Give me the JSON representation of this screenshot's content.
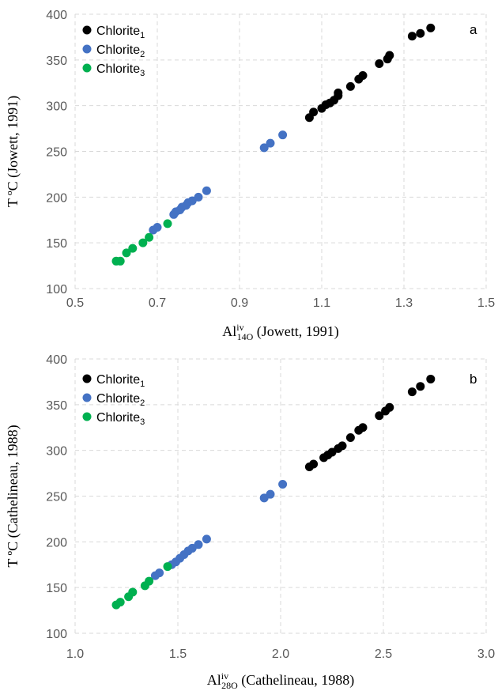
{
  "series_colors": {
    "Chlorite1": "#000000",
    "Chlorite2": "#4472c4",
    "Chlorite3": "#00b050"
  },
  "chart_data": [
    {
      "type": "scatter",
      "panel_letter": "a",
      "ylabel": "T ºC (Jowett, 1991)",
      "xlabel_parts": {
        "base": "Al",
        "sup": "iv",
        "sub": "14O",
        "tail": " (Jowett, 1991)"
      },
      "xlim": [
        0.5,
        1.5
      ],
      "ylim": [
        100,
        400
      ],
      "x_ticks": [
        "0.5",
        "0.7",
        "0.9",
        "1.1",
        "1.3",
        "1.5"
      ],
      "y_ticks": [
        "100",
        "150",
        "200",
        "250",
        "300",
        "350",
        "400"
      ],
      "grid": true,
      "legend_position": "top-left",
      "series": [
        {
          "name": "Chlorite",
          "name_sub": "1",
          "color": "#000000",
          "x": [
            1.07,
            1.08,
            1.1,
            1.11,
            1.12,
            1.13,
            1.14,
            1.14,
            1.17,
            1.19,
            1.2,
            1.24,
            1.26,
            1.265,
            1.32,
            1.34,
            1.365
          ],
          "y": [
            287,
            293,
            297,
            301,
            303,
            306,
            311,
            314,
            321,
            329,
            333,
            346,
            351,
            355,
            376,
            379,
            385
          ]
        },
        {
          "name": "Chlorite",
          "name_sub": "2",
          "color": "#4472c4",
          "x": [
            0.69,
            0.7,
            0.74,
            0.745,
            0.755,
            0.76,
            0.77,
            0.775,
            0.785,
            0.8,
            0.82,
            0.96,
            0.975,
            1.005
          ],
          "y": [
            164,
            167,
            181,
            184,
            186,
            189,
            191,
            194,
            196,
            200,
            207,
            254,
            259,
            268
          ]
        },
        {
          "name": "Chlorite",
          "name_sub": "3",
          "color": "#00b050",
          "x": [
            0.6,
            0.61,
            0.625,
            0.64,
            0.665,
            0.68,
            0.725
          ],
          "y": [
            130,
            130,
            139,
            144,
            150,
            156,
            171
          ]
        }
      ]
    },
    {
      "type": "scatter",
      "panel_letter": "b",
      "ylabel": "T ºC (Cathelineau, 1988)",
      "xlabel_parts": {
        "base": "Al",
        "sup": "iv",
        "sub": "28O",
        "tail": " (Cathelineau, 1988)"
      },
      "xlim": [
        1.0,
        3.0
      ],
      "ylim": [
        100,
        400
      ],
      "x_ticks": [
        "1.0",
        "1.5",
        "2.0",
        "2.5",
        "3.0"
      ],
      "y_ticks": [
        "100",
        "150",
        "200",
        "250",
        "300",
        "350",
        "400"
      ],
      "grid": true,
      "legend_position": "top-left",
      "series": [
        {
          "name": "Chlorite",
          "name_sub": "1",
          "color": "#000000",
          "x": [
            2.14,
            2.16,
            2.21,
            2.23,
            2.25,
            2.28,
            2.3,
            2.34,
            2.38,
            2.4,
            2.48,
            2.51,
            2.53,
            2.64,
            2.68,
            2.73
          ],
          "y": [
            282,
            285,
            292,
            295,
            298,
            302,
            305,
            314,
            322,
            325,
            338,
            343,
            347,
            364,
            370,
            378
          ]
        },
        {
          "name": "Chlorite",
          "name_sub": "2",
          "color": "#4472c4",
          "x": [
            1.39,
            1.41,
            1.47,
            1.49,
            1.51,
            1.53,
            1.55,
            1.57,
            1.6,
            1.64,
            1.92,
            1.95,
            2.01
          ],
          "y": [
            163,
            166,
            175,
            178,
            182,
            186,
            190,
            193,
            197,
            203,
            248,
            252,
            263
          ]
        },
        {
          "name": "Chlorite",
          "name_sub": "3",
          "color": "#00b050",
          "x": [
            1.2,
            1.22,
            1.26,
            1.28,
            1.34,
            1.36,
            1.45
          ],
          "y": [
            131,
            134,
            140,
            145,
            152,
            157,
            173
          ]
        }
      ]
    }
  ]
}
